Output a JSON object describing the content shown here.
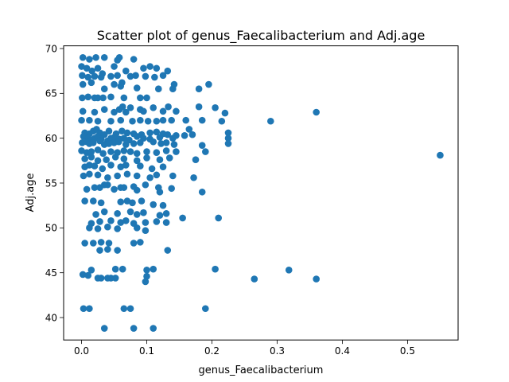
{
  "chart_data": {
    "type": "scatter",
    "title": "Scatter plot of genus_Faecalibacterium and Adj.age",
    "xlabel": "genus_Faecalibacterium",
    "ylabel": "Adj.age",
    "xlim": [
      -0.0275,
      0.5775
    ],
    "ylim": [
      37.5,
      70.3
    ],
    "xticks": [
      0.0,
      0.1,
      0.2,
      0.3,
      0.4,
      0.5
    ],
    "xtick_labels": [
      "0.0",
      "0.1",
      "0.2",
      "0.3",
      "0.4",
      "0.5"
    ],
    "yticks": [
      40,
      45,
      50,
      55,
      60,
      65,
      70
    ],
    "ytick_labels": [
      "40",
      "45",
      "50",
      "55",
      "60",
      "65",
      "70"
    ],
    "grid": false,
    "color": "#1f77b4",
    "series": [
      {
        "x": [
          0.002,
          0.012,
          0.022,
          0.035,
          0.055,
          0.058,
          0.08,
          0.0,
          0.008,
          0.016,
          0.025,
          0.032,
          0.05,
          0.068,
          0.095,
          0.105,
          0.115,
          0.132,
          0.001,
          0.01,
          0.02,
          0.03,
          0.045,
          0.055,
          0.062,
          0.075,
          0.083,
          0.098,
          0.112,
          0.125,
          0.14,
          0.002,
          0.015,
          0.035,
          0.05,
          0.06,
          0.085,
          0.1,
          0.118,
          0.142,
          0.18,
          0.195,
          0.001,
          0.01,
          0.02,
          0.025,
          0.033,
          0.045,
          0.065,
          0.09,
          0.002,
          0.02,
          0.035,
          0.05,
          0.058,
          0.063,
          0.068,
          0.075,
          0.09,
          0.095,
          0.11,
          0.125,
          0.133,
          0.145,
          0.18,
          0.205,
          0.22,
          0.36,
          0.0,
          0.012,
          0.025,
          0.045,
          0.06,
          0.078,
          0.09,
          0.102,
          0.115,
          0.125,
          0.138,
          0.16,
          0.185,
          0.215,
          0.29,
          0.005,
          0.012,
          0.018,
          0.023,
          0.028,
          0.035,
          0.042,
          0.053,
          0.062,
          0.07,
          0.08,
          0.092,
          0.105,
          0.115,
          0.125,
          0.132,
          0.145,
          0.165,
          0.225,
          0.003,
          0.01,
          0.015,
          0.02,
          0.025,
          0.03,
          0.04,
          0.045,
          0.05,
          0.058,
          0.065,
          0.073,
          0.085,
          0.095,
          0.105,
          0.12,
          0.14,
          0.158,
          0.17,
          0.225,
          0.001,
          0.008,
          0.012,
          0.018,
          0.028,
          0.035,
          0.042,
          0.05,
          0.057,
          0.068,
          0.08,
          0.09,
          0.11,
          0.122,
          0.13,
          0.142,
          0.185,
          0.225,
          0.0,
          0.008,
          0.015,
          0.025,
          0.033,
          0.045,
          0.055,
          0.065,
          0.075,
          0.085,
          0.1,
          0.115,
          0.13,
          0.145,
          0.19,
          0.55,
          0.005,
          0.015,
          0.025,
          0.038,
          0.052,
          0.065,
          0.085,
          0.1,
          0.12,
          0.135,
          0.175,
          0.005,
          0.012,
          0.02,
          0.032,
          0.045,
          0.06,
          0.068,
          0.09,
          0.108,
          0.125,
          0.003,
          0.012,
          0.025,
          0.04,
          0.055,
          0.07,
          0.085,
          0.105,
          0.115,
          0.14,
          0.172,
          0.028,
          0.04,
          0.06,
          0.08,
          0.098,
          0.118,
          0.138,
          0.185,
          0.008,
          0.02,
          0.035,
          0.05,
          0.065,
          0.085,
          0.12,
          0.005,
          0.018,
          0.03,
          0.06,
          0.07,
          0.078,
          0.092,
          0.11,
          0.125,
          0.022,
          0.035,
          0.055,
          0.075,
          0.085,
          0.095,
          0.12,
          0.13,
          0.155,
          0.21,
          0.015,
          0.028,
          0.045,
          0.06,
          0.068,
          0.08,
          0.098,
          0.115,
          0.13,
          0.012,
          0.025,
          0.04,
          0.055,
          0.085,
          0.098,
          0.005,
          0.018,
          0.03,
          0.042,
          0.08,
          0.09,
          0.028,
          0.04,
          0.055,
          0.132,
          0.015,
          0.052,
          0.063,
          0.1,
          0.11,
          0.205,
          0.318,
          0.002,
          0.01,
          0.03,
          0.045,
          0.052,
          0.1,
          0.265,
          0.36,
          0.025,
          0.04,
          0.098,
          0.003,
          0.012,
          0.065,
          0.075,
          0.19,
          0.035,
          0.08,
          0.11
        ],
        "y": [
          69.0,
          68.8,
          69.0,
          69.0,
          68.7,
          69.0,
          68.8,
          68.0,
          67.8,
          67.5,
          67.8,
          67.2,
          68.0,
          67.5,
          67.8,
          68.0,
          67.8,
          67.5,
          67.0,
          66.8,
          66.9,
          66.8,
          66.9,
          67.0,
          66.2,
          66.9,
          67.0,
          66.9,
          66.8,
          67.0,
          65.5,
          66.0,
          66.2,
          65.5,
          66.0,
          65.8,
          65.6,
          64.5,
          65.5,
          66.0,
          65.5,
          66.0,
          64.5,
          64.6,
          64.5,
          64.5,
          64.5,
          64.6,
          64.5,
          64.5,
          63.0,
          62.9,
          63.2,
          62.9,
          63.2,
          63.5,
          62.9,
          63.4,
          63.2,
          63.0,
          63.4,
          63.0,
          63.5,
          63.0,
          63.5,
          63.4,
          62.8,
          62.9,
          62.0,
          62.0,
          61.9,
          61.9,
          62.0,
          61.9,
          62.0,
          61.9,
          61.9,
          62.0,
          62.0,
          62.0,
          62.0,
          61.9,
          61.9,
          60.6,
          60.5,
          60.8,
          61.0,
          60.6,
          60.4,
          60.8,
          60.5,
          60.8,
          60.6,
          60.5,
          60.4,
          60.6,
          60.7,
          60.5,
          60.4,
          60.3,
          61.0,
          60.6,
          60.2,
          60.0,
          59.8,
          60.0,
          60.2,
          59.9,
          59.7,
          60.0,
          60.1,
          59.9,
          60.0,
          59.8,
          60.2,
          60.0,
          59.9,
          60.1,
          60.0,
          60.3,
          60.4,
          60.0,
          59.5,
          59.6,
          59.4,
          59.5,
          59.7,
          59.3,
          59.4,
          59.5,
          59.6,
          59.3,
          59.4,
          59.5,
          59.6,
          59.4,
          59.5,
          59.3,
          59.2,
          59.4,
          58.6,
          58.4,
          58.5,
          58.7,
          58.3,
          58.5,
          58.4,
          58.6,
          58.5,
          58.3,
          58.5,
          58.4,
          58.6,
          58.5,
          58.5,
          58.1,
          57.7,
          57.9,
          57.5,
          57.6,
          57.9,
          57.7,
          57.5,
          57.8,
          57.6,
          57.8,
          57.6,
          56.8,
          57.0,
          56.9,
          56.6,
          57.0,
          56.8,
          57.0,
          56.9,
          56.6,
          56.8,
          55.8,
          56.0,
          55.9,
          55.6,
          55.8,
          56.0,
          55.8,
          55.6,
          55.9,
          55.8,
          55.6,
          54.5,
          54.8,
          54.5,
          54.6,
          54.8,
          54.5,
          54.4,
          54.0,
          54.3,
          54.5,
          54.8,
          54.3,
          54.5,
          54.2,
          54.0,
          53.0,
          53.0,
          52.8,
          52.9,
          53.0,
          52.8,
          53.0,
          52.6,
          52.5,
          51.5,
          51.8,
          51.6,
          51.8,
          51.5,
          51.7,
          51.4,
          51.6,
          51.1,
          51.1,
          50.5,
          50.7,
          50.8,
          50.6,
          50.8,
          50.5,
          50.6,
          50.7,
          50.6,
          50.0,
          49.9,
          50.1,
          49.9,
          50.0,
          49.7,
          48.3,
          48.3,
          48.4,
          48.3,
          48.3,
          48.4,
          47.5,
          47.6,
          47.5,
          47.5,
          45.3,
          45.4,
          45.4,
          45.3,
          45.4,
          45.4,
          45.3,
          44.8,
          44.7,
          44.4,
          44.4,
          44.4,
          44.6,
          44.3,
          44.3,
          44.4,
          44.4,
          44.0,
          41.0,
          41.0,
          41.0,
          41.0,
          41.0,
          38.8,
          38.8,
          38.8
        ]
      }
    ]
  }
}
